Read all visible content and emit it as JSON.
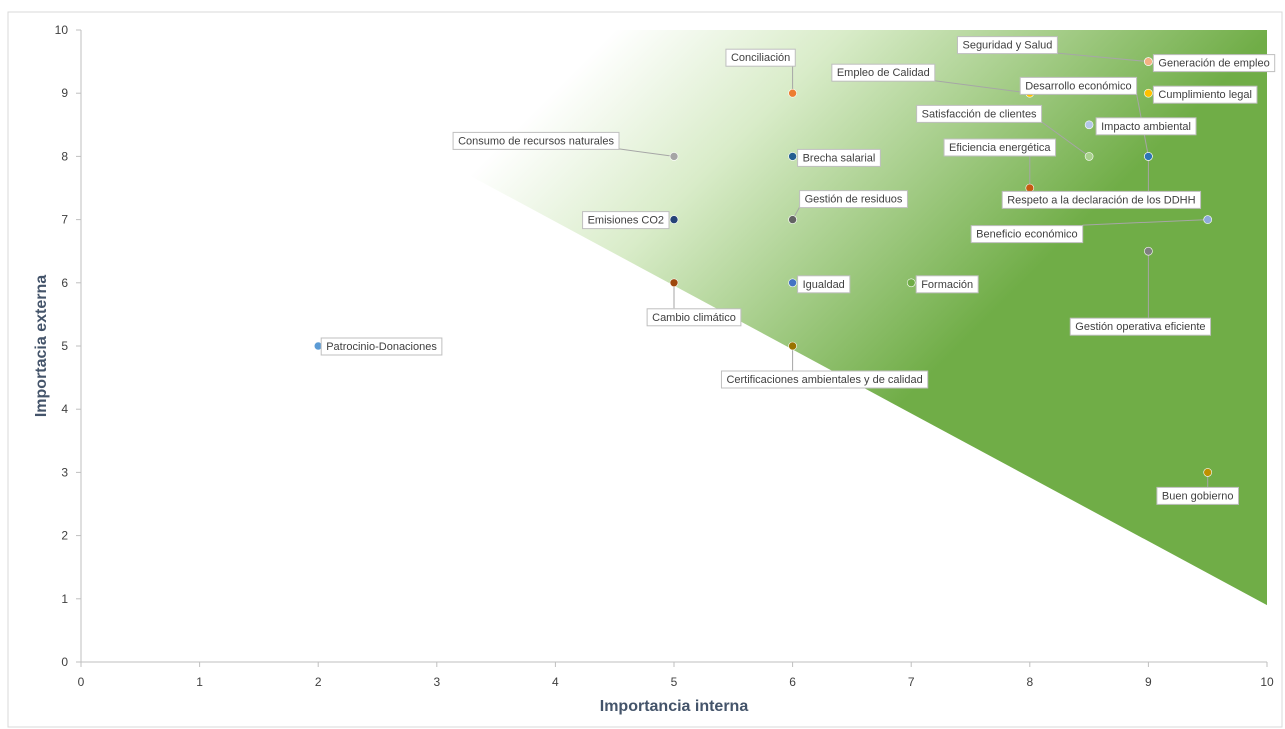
{
  "chart_data": {
    "type": "scatter",
    "title": "",
    "xlabel": "Importancia interna",
    "ylabel": "Importacia externa",
    "xlim": [
      0,
      10
    ],
    "ylim": [
      0,
      10
    ],
    "xticks": [
      "0",
      "1",
      "2",
      "3",
      "4",
      "5",
      "6",
      "7",
      "8",
      "9",
      "10"
    ],
    "yticks": [
      "0",
      "1",
      "2",
      "3",
      "4",
      "5",
      "6",
      "7",
      "8",
      "9",
      "10"
    ],
    "grid": false,
    "legend": "none",
    "background": "diagonal gradient: white in lower-left to green (#70ad47) in upper-right",
    "points": [
      {
        "label": "Patrocinio-Donaciones",
        "x": 2,
        "y": 5,
        "color": "#5b9bd5"
      },
      {
        "label": "Consumo de recursos naturales",
        "x": 5,
        "y": 8,
        "color": "#a5a5a5"
      },
      {
        "label": "Emisiones CO2",
        "x": 5,
        "y": 7,
        "color": "#264478"
      },
      {
        "label": "Cambio climático",
        "x": 5,
        "y": 6,
        "color": "#9e480e"
      },
      {
        "label": "Conciliación",
        "x": 6,
        "y": 9,
        "color": "#ed7d31"
      },
      {
        "label": "Brecha salarial",
        "x": 6,
        "y": 8,
        "color": "#255e91"
      },
      {
        "label": "Gestión de residuos",
        "x": 6,
        "y": 7,
        "color": "#636363"
      },
      {
        "label": "Igualdad",
        "x": 6,
        "y": 6,
        "color": "#4472c4"
      },
      {
        "label": "Certificaciones ambientales y de calidad",
        "x": 6,
        "y": 5,
        "color": "#997300"
      },
      {
        "label": "Formación",
        "x": 7,
        "y": 6,
        "color": "#70ad47"
      },
      {
        "label": "Empleo de Calidad",
        "x": 8,
        "y": 9,
        "color": "#ffc000"
      },
      {
        "label": "Eficiencia energética",
        "x": 8,
        "y": 7.5,
        "color": "#c55a11"
      },
      {
        "label": "Desarrollo económico",
        "x": 9,
        "y": 8,
        "color": "#2e75b6"
      },
      {
        "label": "Impacto ambiental",
        "x": 8.5,
        "y": 8.5,
        "color": "#b4c7e7"
      },
      {
        "label": "Satisfacción de clientes",
        "x": 8.5,
        "y": 8,
        "color": "#a9d18e"
      },
      {
        "label": "Seguridad y Salud",
        "x": 9,
        "y": 9.5,
        "color": "#f4b183"
      },
      {
        "label": "Generación de empleo",
        "x": 9,
        "y": 9.5,
        "color": "#f4b183"
      },
      {
        "label": "Cumplimiento legal",
        "x": 9,
        "y": 9,
        "color": "#ffc000"
      },
      {
        "label": "Respeto a la declaración de los DDHH",
        "x": 9,
        "y": 8,
        "color": "#2e75b6"
      },
      {
        "label": "Beneficio económico",
        "x": 9.5,
        "y": 7,
        "color": "#8faadc"
      },
      {
        "label": "Gestión operativa eficiente",
        "x": 9,
        "y": 6.5,
        "color": "#7f7f7f"
      },
      {
        "label": "Buen gobierno",
        "x": 9.5,
        "y": 3,
        "color": "#bf9000"
      }
    ]
  }
}
